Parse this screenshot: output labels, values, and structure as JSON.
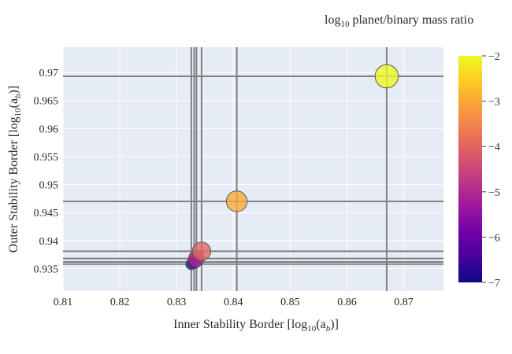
{
  "chart_data": {
    "type": "scatter",
    "title": "",
    "xlabel": "Inner Stability Border [log10(ab)]",
    "xlabel_parts": {
      "lead": "Inner Stability Border [log",
      "sub1": "10",
      "mid": "(a",
      "sub2": "b",
      "tail": ")]"
    },
    "ylabel": "Outer Stability Border [log10(ab)]",
    "ylabel_parts": {
      "lead": "Outer Stability Border [log",
      "sub1": "10",
      "mid": "(a",
      "sub2": "b",
      "tail": ")]"
    },
    "xlim": [
      0.81,
      0.877
    ],
    "ylim": [
      0.931,
      0.9745
    ],
    "xticks": [
      0.81,
      0.82,
      0.83,
      0.84,
      0.85,
      0.86,
      0.87
    ],
    "xtick_labels": [
      "0.81",
      "0.82",
      "0.83",
      "0.84",
      "0.85",
      "0.86",
      "0.87"
    ],
    "yticks": [
      0.935,
      0.94,
      0.945,
      0.95,
      0.955,
      0.96,
      0.965,
      0.97
    ],
    "ytick_labels": [
      "0.935",
      "0.94",
      "0.945",
      "0.95",
      "0.955",
      "0.96",
      "0.965",
      "0.97"
    ],
    "grid": true,
    "colorbar": {
      "title": "log10 planet/binary mass ratio",
      "title_parts": {
        "lead": "log",
        "sub": "10",
        "tail": " planet/binary mass ratio"
      },
      "range": [
        -7,
        -2
      ],
      "ticks": [
        -2,
        -3,
        -4,
        -5,
        -6,
        -7
      ],
      "tick_labels": [
        "−2",
        "−3",
        "−4",
        "−5",
        "−6",
        "−7"
      ],
      "colorscale": [
        "#0d0887",
        "#46039f",
        "#7201a8",
        "#9c179e",
        "#bd3786",
        "#d8576b",
        "#ed7953",
        "#fb9f3a",
        "#fdca26",
        "#f0f921"
      ]
    },
    "points": [
      {
        "x": 0.8326,
        "y": 0.9358,
        "c": -7
      },
      {
        "x": 0.8331,
        "y": 0.9362,
        "c": -6
      },
      {
        "x": 0.8335,
        "y": 0.9368,
        "c": -5
      },
      {
        "x": 0.8344,
        "y": 0.9381,
        "c": -4
      },
      {
        "x": 0.8406,
        "y": 0.947,
        "c": -3
      },
      {
        "x": 0.867,
        "y": 0.9693,
        "c": -2
      }
    ]
  }
}
